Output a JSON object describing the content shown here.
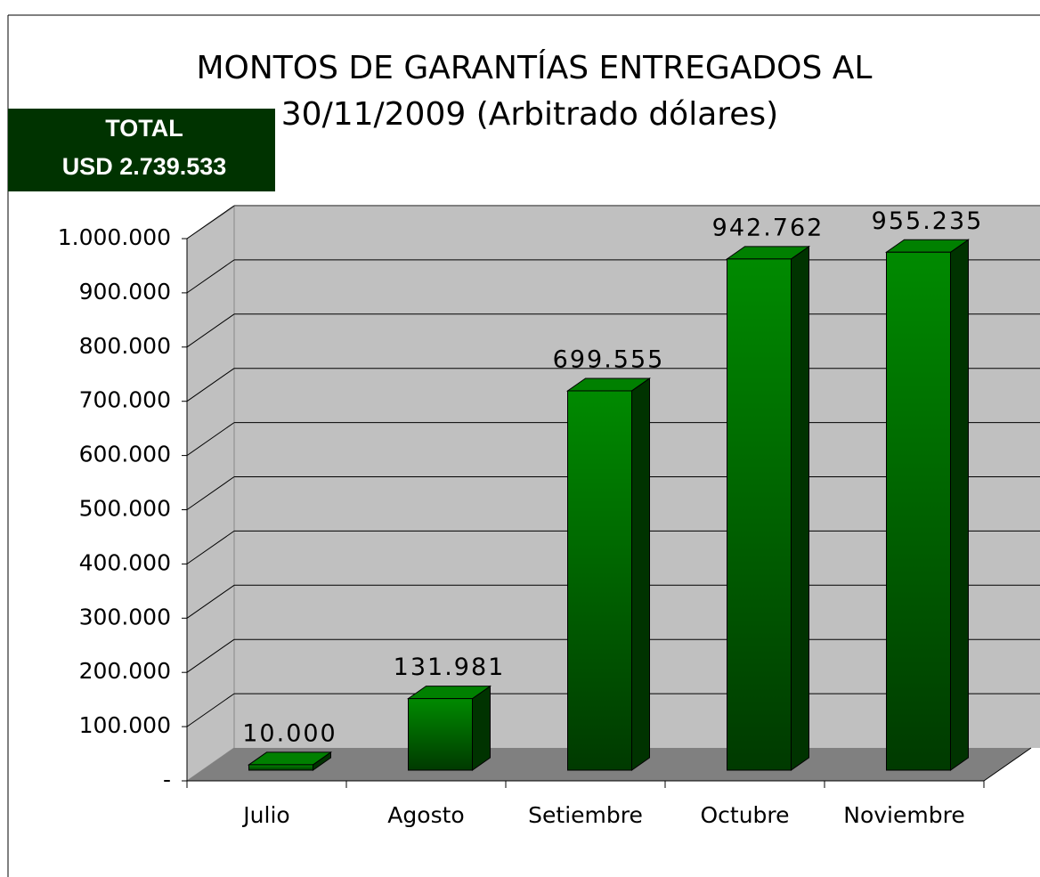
{
  "chart_data": {
    "type": "bar3d",
    "title": [
      "MONTOS DE GARANTÍAS ENTREGADOS AL",
      "30/11/2009 (Arbitrado dólares)"
    ],
    "annotation": [
      "TOTAL",
      "USD 2.739.533"
    ],
    "categories": [
      "Julio",
      "Agosto",
      "Setiembre",
      "Octubre",
      "Noviembre"
    ],
    "values": [
      10000,
      131981,
      699555,
      942762,
      955235
    ],
    "value_labels": [
      "10.000",
      "131.981",
      "699.555",
      "942.762",
      "955.235"
    ],
    "color": "#008000",
    "ylim": [
      0,
      1000000
    ],
    "yticks": [
      {
        "value": 0,
        "label": "-"
      },
      {
        "value": 100000,
        "label": "100.000"
      },
      {
        "value": 200000,
        "label": "200.000"
      },
      {
        "value": 300000,
        "label": "300.000"
      },
      {
        "value": 400000,
        "label": "400.000"
      },
      {
        "value": 500000,
        "label": "500.000"
      },
      {
        "value": 600000,
        "label": "600.000"
      },
      {
        "value": 700000,
        "label": "700.000"
      },
      {
        "value": 800000,
        "label": "800.000"
      },
      {
        "value": 900000,
        "label": "900.000"
      },
      {
        "value": 1000000,
        "label": "1.000.000"
      }
    ],
    "grid": true
  }
}
